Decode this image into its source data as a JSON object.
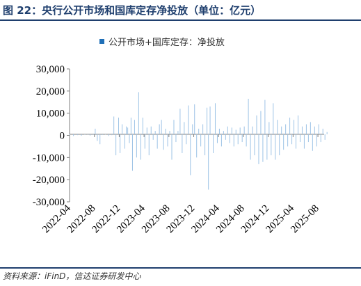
{
  "figure": {
    "title": "图 22：央行公开市场和国库定存净投放（单位：亿元）",
    "source": "资料来源：iFinD，信达证券研发中心"
  },
  "chart_data": {
    "type": "bar",
    "series": [
      {
        "name": "公开市场+国库定存：净投放",
        "color": "#9dc3e6",
        "legend_color": "#1f6fb7"
      }
    ],
    "ylim": [
      -30000,
      30000
    ],
    "yticks": [
      {
        "value": 30000,
        "label": "30,000"
      },
      {
        "value": 20000,
        "label": "20,000"
      },
      {
        "value": 10000,
        "label": "10,000"
      },
      {
        "value": 0,
        "label": "0"
      },
      {
        "value": -10000,
        "label": "-10,000"
      },
      {
        "value": -20000,
        "label": "-20,000"
      },
      {
        "value": -30000,
        "label": "-30,000"
      }
    ],
    "xrange": [
      "2022-04",
      "2025-09"
    ],
    "xticks": [
      "2022-04",
      "2022-08",
      "2022-12",
      "2023-04",
      "2023-08",
      "2023-12",
      "2024-04",
      "2024-08",
      "2024-12",
      "2025-04",
      "2025-08"
    ],
    "points": [
      [
        "2022-04-01",
        200
      ],
      [
        "2022-04-20",
        -300
      ],
      [
        "2022-05-10",
        100
      ],
      [
        "2022-05-28",
        -200
      ],
      [
        "2022-06-15",
        400
      ],
      [
        "2022-06-30",
        300
      ],
      [
        "2022-07-10",
        -100
      ],
      [
        "2022-07-25",
        200
      ],
      [
        "2022-08-05",
        3000
      ],
      [
        "2022-08-15",
        -2500
      ],
      [
        "2022-08-28",
        -4000
      ],
      [
        "2022-09-10",
        200
      ],
      [
        "2022-09-25",
        500
      ],
      [
        "2022-10-10",
        -300
      ],
      [
        "2022-10-25",
        100
      ],
      [
        "2022-11-05",
        8500
      ],
      [
        "2022-11-15",
        -9000
      ],
      [
        "2022-11-28",
        8000
      ],
      [
        "2022-12-05",
        -8000
      ],
      [
        "2022-12-15",
        5000
      ],
      [
        "2022-12-28",
        -6000
      ],
      [
        "2023-01-05",
        4000
      ],
      [
        "2023-01-12",
        3500
      ],
      [
        "2023-01-20",
        -3500
      ],
      [
        "2023-01-28",
        8000
      ],
      [
        "2023-02-05",
        -16000
      ],
      [
        "2023-02-15",
        7000
      ],
      [
        "2023-02-25",
        -10000
      ],
      [
        "2023-03-05",
        19500
      ],
      [
        "2023-03-15",
        -11000
      ],
      [
        "2023-03-25",
        8000
      ],
      [
        "2023-04-05",
        -6000
      ],
      [
        "2023-04-15",
        3500
      ],
      [
        "2023-04-25",
        -9000
      ],
      [
        "2023-05-05",
        4000
      ],
      [
        "2023-05-15",
        -2000
      ],
      [
        "2023-05-25",
        2000
      ],
      [
        "2023-06-05",
        -6000
      ],
      [
        "2023-06-15",
        5000
      ],
      [
        "2023-06-25",
        7000
      ],
      [
        "2023-07-05",
        -6500
      ],
      [
        "2023-07-15",
        3000
      ],
      [
        "2023-07-25",
        -5000
      ],
      [
        "2023-08-05",
        2000
      ],
      [
        "2023-08-15",
        -11000
      ],
      [
        "2023-08-25",
        7000
      ],
      [
        "2023-09-05",
        -3000
      ],
      [
        "2023-09-15",
        2000
      ],
      [
        "2023-09-25",
        12000
      ],
      [
        "2023-10-05",
        -8000
      ],
      [
        "2023-10-15",
        6000
      ],
      [
        "2023-10-25",
        -4000
      ],
      [
        "2023-11-05",
        13500
      ],
      [
        "2023-11-15",
        -18000
      ],
      [
        "2023-11-25",
        5000
      ],
      [
        "2023-12-05",
        14000
      ],
      [
        "2023-12-15",
        -10000
      ],
      [
        "2023-12-25",
        3000
      ],
      [
        "2024-01-05",
        -5000
      ],
      [
        "2024-01-15",
        5000
      ],
      [
        "2024-01-25",
        -9000
      ],
      [
        "2024-02-05",
        12500
      ],
      [
        "2024-02-12",
        -24500
      ],
      [
        "2024-02-20",
        13000
      ],
      [
        "2024-03-05",
        -8000
      ],
      [
        "2024-03-15",
        14500
      ],
      [
        "2024-03-25",
        -3500
      ],
      [
        "2024-04-05",
        3000
      ],
      [
        "2024-04-15",
        -5000
      ],
      [
        "2024-04-25",
        2000
      ],
      [
        "2024-05-05",
        -2000
      ],
      [
        "2024-05-15",
        4000
      ],
      [
        "2024-05-25",
        -3500
      ],
      [
        "2024-06-05",
        3500
      ],
      [
        "2024-06-15",
        -5000
      ],
      [
        "2024-06-25",
        2500
      ],
      [
        "2024-07-05",
        -4000
      ],
      [
        "2024-07-15",
        3500
      ],
      [
        "2024-07-25",
        -3000
      ],
      [
        "2024-08-05",
        4000
      ],
      [
        "2024-08-15",
        -5000
      ],
      [
        "2024-08-25",
        16500
      ],
      [
        "2024-09-05",
        -11000
      ],
      [
        "2024-09-15",
        4000
      ],
      [
        "2024-09-25",
        -9000
      ],
      [
        "2024-10-05",
        9000
      ],
      [
        "2024-10-15",
        -13000
      ],
      [
        "2024-10-25",
        11000
      ],
      [
        "2024-11-05",
        -12000
      ],
      [
        "2024-11-15",
        16000
      ],
      [
        "2024-11-25",
        -11000
      ],
      [
        "2024-12-05",
        6000
      ],
      [
        "2024-12-15",
        -9000
      ],
      [
        "2024-12-25",
        14500
      ],
      [
        "2025-01-05",
        -11000
      ],
      [
        "2025-01-15",
        7000
      ],
      [
        "2025-01-25",
        -9000
      ],
      [
        "2025-02-05",
        4000
      ],
      [
        "2025-02-15",
        -6500
      ],
      [
        "2025-02-25",
        5000
      ],
      [
        "2025-03-05",
        -5000
      ],
      [
        "2025-03-15",
        8000
      ],
      [
        "2025-03-25",
        -4000
      ],
      [
        "2025-04-05",
        7000
      ],
      [
        "2025-04-15",
        -6000
      ],
      [
        "2025-04-25",
        9000
      ],
      [
        "2025-05-05",
        -3000
      ],
      [
        "2025-05-15",
        4000
      ],
      [
        "2025-05-25",
        -6000
      ],
      [
        "2025-06-05",
        5000
      ],
      [
        "2025-06-15",
        -3000
      ],
      [
        "2025-06-25",
        6000
      ],
      [
        "2025-07-05",
        -7000
      ],
      [
        "2025-07-15",
        4000
      ],
      [
        "2025-07-25",
        -5000
      ],
      [
        "2025-08-05",
        5000
      ],
      [
        "2025-08-15",
        -3000
      ],
      [
        "2025-08-25",
        3000
      ],
      [
        "2025-09-05",
        -2000
      ],
      [
        "2025-09-15",
        1500
      ]
    ]
  }
}
